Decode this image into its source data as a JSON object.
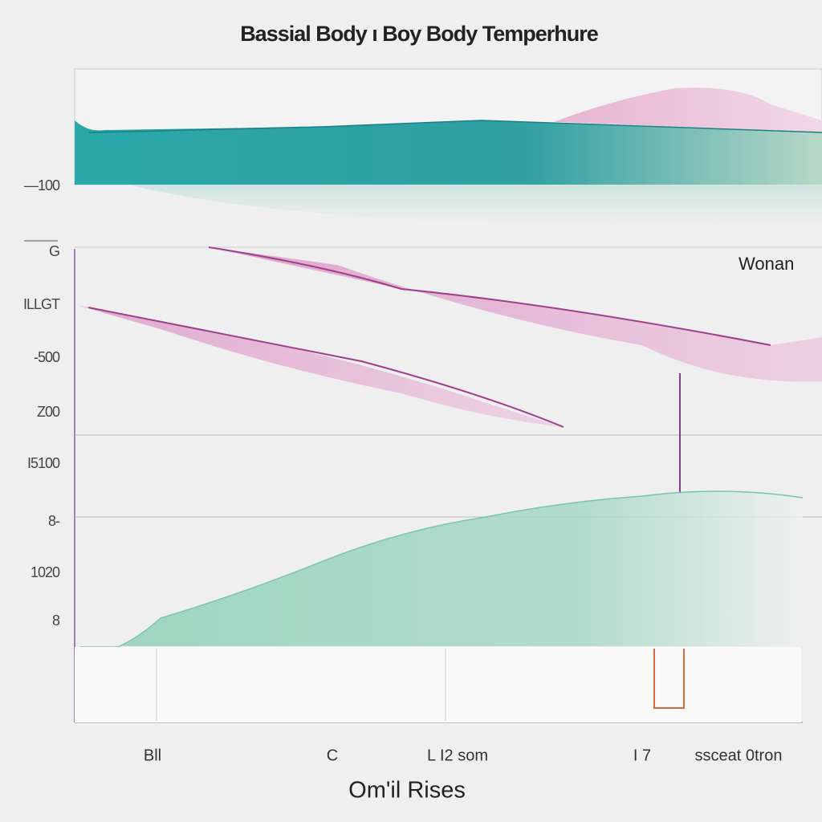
{
  "header": {
    "title": "Bassial Body ı Boy Body Temperhure"
  },
  "legend": {
    "label": "Wonan"
  },
  "y_labels": [
    "—100",
    "G",
    "ILLGT",
    "-500",
    "Z00",
    "I5100",
    "8-",
    "1020",
    "8"
  ],
  "x_labels": [
    "Bll",
    "C",
    "L I2  som",
    "I 7",
    "ssceat  0tron"
  ],
  "x_axis_title": "Om'il Rises"
}
